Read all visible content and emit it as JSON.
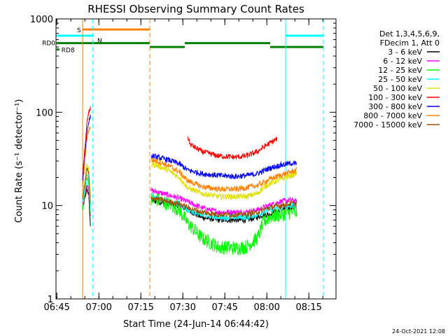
{
  "chart_data": {
    "type": "line",
    "title": "RHESSI Observing Summary Count Rates",
    "xlabel": "Start Time (24-Jun-14 06:44:42)",
    "ylabel": "Count Rate (s⁻¹ detector⁻¹)",
    "yscale": "log",
    "ylim": [
      1,
      1000
    ],
    "xlim_minutes": [
      0,
      100
    ],
    "x_ticks": [
      {
        "label": "06:45",
        "minute": 0.3
      },
      {
        "label": "07:00",
        "minute": 15.3
      },
      {
        "label": "07:15",
        "minute": 30.3
      },
      {
        "label": "07:30",
        "minute": 45.3
      },
      {
        "label": "07:45",
        "minute": 60.3
      },
      {
        "label": "08:00",
        "minute": 75.3
      },
      {
        "label": "08:15",
        "minute": 90.3
      }
    ],
    "y_ticks": [
      {
        "label": "1",
        "value": 1
      },
      {
        "label": "10",
        "value": 10
      },
      {
        "label": "100",
        "value": 100
      },
      {
        "label": "1000",
        "value": 1000
      }
    ],
    "legend": {
      "header": [
        "Det 1,3,4,5,6,9,",
        "FDecim 1, Att 0"
      ],
      "entries": [
        {
          "label": "3 - 6 keV",
          "color": "#000000"
        },
        {
          "label": "6 - 12 keV",
          "color": "#ff00ff"
        },
        {
          "label": "12 - 25 keV",
          "color": "#00ff00"
        },
        {
          "label": "25 - 50 keV",
          "color": "#00ffff"
        },
        {
          "label": "50 - 100 keV",
          "color": "#e0e000"
        },
        {
          "label": "100 - 300 keV",
          "color": "#ff0000"
        },
        {
          "label": "300 - 800 keV",
          "color": "#0000ff"
        },
        {
          "label": "800 - 7000 keV",
          "color": "#ff8000"
        },
        {
          "label": "7000 - 15000 keV",
          "color": "#a05000"
        }
      ]
    },
    "series": [
      {
        "name": "3 - 6 keV",
        "color": "#000000",
        "segments": [
          {
            "t": [
              9.5,
              10.3,
              11.0,
              11.7,
              12.3
            ],
            "v": [
              9,
              12,
              15,
              13,
              6
            ]
          },
          {
            "t": [
              34,
              36,
              40,
              44,
              47,
              52,
              58,
              64,
              68,
              72,
              74,
              76,
              80,
              84,
              86
            ],
            "v": [
              11.5,
              11,
              10.5,
              10,
              9,
              7.5,
              7,
              7,
              7,
              7.5,
              8,
              8,
              9,
              9.5,
              9.5
            ]
          }
        ]
      },
      {
        "name": "6 - 12 keV",
        "color": "#ff00ff",
        "segments": [
          {
            "t": [
              9.5,
              10.3,
              11.0,
              11.7,
              12.3
            ],
            "v": [
              10,
              13,
              17,
              15,
              8
            ]
          },
          {
            "t": [
              34,
              36,
              40,
              44,
              47,
              52,
              58,
              64,
              68,
              72,
              74,
              76,
              80,
              84,
              86
            ],
            "v": [
              14.5,
              14,
              13,
              12,
              11,
              9.5,
              8.5,
              8.5,
              8.5,
              9,
              9.5,
              10,
              11,
              11.5,
              11
            ]
          }
        ]
      },
      {
        "name": "12 - 25 keV",
        "color": "#00ff00",
        "segments": [
          {
            "t": [
              9.5,
              10.3,
              11.0,
              11.7,
              12.3
            ],
            "v": [
              9,
              14,
              20,
              17,
              8
            ]
          },
          {
            "t": [
              34,
              36,
              40,
              44,
              47,
              52,
              58,
              64,
              68,
              72,
              74,
              76,
              80,
              84,
              86
            ],
            "v": [
              12,
              11.5,
              10.5,
              9,
              6.5,
              4.5,
              3.6,
              3.5,
              3.6,
              4.5,
              6.5,
              7.5,
              8,
              8.5,
              8.5
            ]
          }
        ]
      },
      {
        "name": "25 - 50 keV",
        "color": "#00ffff",
        "segments": [
          {
            "t": [
              9.5,
              10.3,
              11.0,
              11.7,
              12.3
            ],
            "v": [
              11,
              15,
              22,
              19,
              9
            ]
          },
          {
            "t": [
              34,
              36,
              40,
              44,
              47,
              52,
              58,
              64,
              68,
              72,
              74,
              76,
              80,
              84,
              86
            ],
            "v": [
              12.5,
              12,
              11,
              10.5,
              9,
              8,
              7.5,
              7.5,
              7.5,
              8,
              8.5,
              9,
              9.5,
              10,
              10
            ]
          }
        ]
      },
      {
        "name": "50 - 100 keV",
        "color": "#e0e000",
        "segments": [
          {
            "t": [
              9.5,
              10.3,
              11.0,
              11.7,
              12.3
            ],
            "v": [
              13,
              18,
              28,
              24,
              12
            ]
          },
          {
            "t": [
              34,
              36,
              40,
              44,
              47,
              52,
              58,
              64,
              68,
              72,
              74,
              76,
              80,
              84,
              86
            ],
            "v": [
              28,
              27,
              24,
              20,
              15.5,
              13.5,
              12.5,
              12.5,
              12.5,
              13.5,
              15.5,
              17,
              19,
              21,
              22
            ]
          }
        ]
      },
      {
        "name": "100 - 300 keV",
        "color": "#ff0000",
        "segments": [
          {
            "t": [
              9.5,
              10.3,
              11.0,
              11.7,
              12.3
            ],
            "v": [
              20,
              40,
              75,
              100,
              110
            ]
          },
          {
            "t": [
              47,
              48,
              52,
              58,
              64,
              68,
              72,
              74,
              76,
              79
            ],
            "v": [
              55,
              45,
              38,
              34,
              33,
              34,
              38,
              42,
              46,
              52
            ]
          }
        ]
      },
      {
        "name": "300 - 800 keV",
        "color": "#0000ff",
        "segments": [
          {
            "t": [
              9.5,
              10.3,
              11.0,
              11.7,
              12.3
            ],
            "v": [
              18,
              35,
              60,
              80,
              90
            ]
          },
          {
            "t": [
              34,
              36,
              40,
              44,
              47,
              52,
              58,
              64,
              68,
              72,
              74,
              76,
              80,
              84,
              86
            ],
            "v": [
              34,
              33,
              31,
              28,
              24,
              22,
              21,
              20.5,
              21,
              22,
              23.5,
              25,
              27,
              28.5,
              28
            ]
          }
        ]
      },
      {
        "name": "800 - 7000 keV",
        "color": "#ff8000",
        "segments": [
          {
            "t": [
              9.5,
              10.3,
              11.0,
              11.7,
              12.3
            ],
            "v": [
              15,
              30,
              50,
              65,
              70
            ]
          },
          {
            "t": [
              34,
              36,
              40,
              44,
              47,
              52,
              58,
              64,
              68,
              72,
              74,
              76,
              80,
              84,
              86
            ],
            "v": [
              31,
              30,
              27,
              23,
              18.5,
              16,
              15,
              15,
              15.5,
              16.5,
              17.5,
              19,
              21,
              23,
              24
            ]
          }
        ]
      },
      {
        "name": "7000 - 15000 keV",
        "color": "#a05000",
        "segments": [
          {
            "t": [
              9.5,
              10.3,
              11.0,
              11.7,
              12.3
            ],
            "v": [
              12,
              17,
              25,
              22,
              10
            ]
          },
          {
            "t": [
              34,
              36,
              40,
              44,
              47,
              52,
              58,
              64,
              68,
              72,
              74,
              76,
              80,
              84,
              86
            ],
            "v": [
              12,
              11.8,
              11,
              10.5,
              9.5,
              8.5,
              8,
              8,
              8,
              8.5,
              9,
              9.5,
              10,
              10.5,
              10.5
            ]
          }
        ]
      }
    ],
    "flag_bars": [
      {
        "label": "S",
        "color": "#ff8000",
        "level": 770,
        "from": 9.5,
        "to": 33.5
      },
      {
        "label": "N",
        "color": "#00ffff",
        "level": 660,
        "from": 0.2,
        "to": 13.5
      },
      {
        "label": "",
        "color": "#00ffff",
        "level": 660,
        "from": 82.0,
        "to": 95.5
      },
      {
        "label": "RD0",
        "color": "#008000",
        "level": 550,
        "from": 0.2,
        "to": 33.5
      },
      {
        "label": "",
        "color": "#008000",
        "level": 500,
        "from": 33.5,
        "to": 46.0
      },
      {
        "label": "",
        "color": "#008000",
        "level": 550,
        "from": 46.0,
        "to": 76.5
      },
      {
        "label": "",
        "color": "#008000",
        "level": 500,
        "from": 76.5,
        "to": 95.5
      },
      {
        "label": "RD8",
        "color": "#008000",
        "level": 470,
        "from": 0.2,
        "to": 1.2
      }
    ],
    "vertical_markers": [
      {
        "minute": 9.5,
        "color": "#ff8000",
        "style": "solid"
      },
      {
        "minute": 13.2,
        "color": "#00ffff",
        "style": "dashed"
      },
      {
        "minute": 33.5,
        "color": "#ff8000",
        "style": "dashed"
      },
      {
        "minute": 82.0,
        "color": "#00ffff",
        "style": "solid"
      },
      {
        "minute": 95.5,
        "color": "#00ffff",
        "style": "dashed"
      }
    ],
    "footer_date": "24-Oct-2021 12:08"
  }
}
